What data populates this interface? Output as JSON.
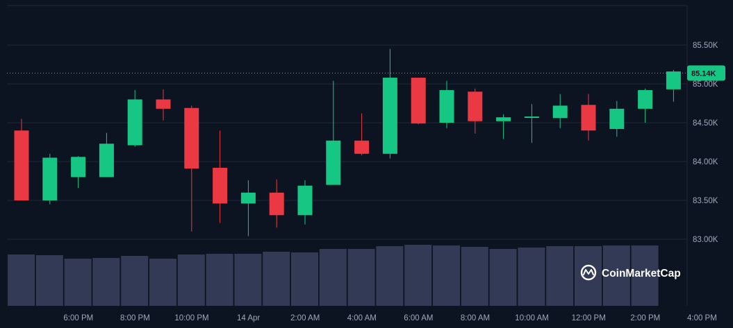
{
  "chart_data": {
    "type": "candlestick",
    "current_price_label": "85.14K",
    "current_price": 85140,
    "y_ticks": [
      {
        "value": 85500,
        "label": "85.50K"
      },
      {
        "value": 85000,
        "label": "85.00K"
      },
      {
        "value": 84500,
        "label": "84.50K"
      },
      {
        "value": 84000,
        "label": "84.00K"
      },
      {
        "value": 83500,
        "label": "83.50K"
      },
      {
        "value": 83000,
        "label": "83.00K"
      }
    ],
    "ylim": [
      82900,
      85800
    ],
    "x_ticks": [
      {
        "index": 1,
        "label": "6:00 PM"
      },
      {
        "index": 3,
        "label": "8:00 PM"
      },
      {
        "index": 5,
        "label": "10:00 PM"
      },
      {
        "index": 7,
        "label": "14 Apr"
      },
      {
        "index": 9,
        "label": "2:00 AM"
      },
      {
        "index": 11,
        "label": "4:00 AM"
      },
      {
        "index": 13,
        "label": "6:00 AM"
      },
      {
        "index": 15,
        "label": "8:00 AM"
      },
      {
        "index": 17,
        "label": "10:00 AM"
      },
      {
        "index": 19,
        "label": "12:00 PM"
      },
      {
        "index": 21,
        "label": "2:00 PM"
      },
      {
        "index": 23,
        "label": "4:00 PM"
      }
    ],
    "candles": [
      {
        "open": 84400,
        "high": 84550,
        "low": 83500,
        "close": 83500,
        "volume": 0.74
      },
      {
        "open": 83500,
        "high": 84100,
        "low": 83450,
        "close": 84050,
        "volume": 0.73
      },
      {
        "open": 83800,
        "high": 84070,
        "low": 83660,
        "close": 84060,
        "volume": 0.68
      },
      {
        "open": 83800,
        "high": 84370,
        "low": 83800,
        "close": 84230,
        "volume": 0.69
      },
      {
        "open": 84210,
        "high": 84920,
        "low": 84190,
        "close": 84800,
        "volume": 0.72
      },
      {
        "open": 84800,
        "high": 84930,
        "low": 84530,
        "close": 84680,
        "volume": 0.68
      },
      {
        "open": 84690,
        "high": 84720,
        "low": 83100,
        "close": 83910,
        "volume": 0.74
      },
      {
        "open": 83920,
        "high": 84400,
        "low": 83210,
        "close": 83460,
        "volume": 0.75
      },
      {
        "open": 83460,
        "high": 83760,
        "low": 83040,
        "close": 83600,
        "volume": 0.75
      },
      {
        "open": 83600,
        "high": 83770,
        "low": 83150,
        "close": 83310,
        "volume": 0.78
      },
      {
        "open": 83310,
        "high": 83760,
        "low": 83190,
        "close": 83690,
        "volume": 0.77
      },
      {
        "open": 83700,
        "high": 85040,
        "low": 83700,
        "close": 84270,
        "volume": 0.82
      },
      {
        "open": 84270,
        "high": 84620,
        "low": 84080,
        "close": 84100,
        "volume": 0.82
      },
      {
        "open": 84100,
        "high": 85450,
        "low": 84040,
        "close": 85080,
        "volume": 0.86
      },
      {
        "open": 85080,
        "high": 85080,
        "low": 84480,
        "close": 84490,
        "volume": 0.88
      },
      {
        "open": 84500,
        "high": 85040,
        "low": 84430,
        "close": 84920,
        "volume": 0.87
      },
      {
        "open": 84900,
        "high": 84940,
        "low": 84360,
        "close": 84520,
        "volume": 0.85
      },
      {
        "open": 84520,
        "high": 84610,
        "low": 84290,
        "close": 84570,
        "volume": 0.82
      },
      {
        "open": 84570,
        "high": 84740,
        "low": 84240,
        "close": 84580,
        "volume": 0.84
      },
      {
        "open": 84560,
        "high": 84870,
        "low": 84430,
        "close": 84720,
        "volume": 0.86
      },
      {
        "open": 84730,
        "high": 84870,
        "low": 84270,
        "close": 84400,
        "volume": 0.86
      },
      {
        "open": 84420,
        "high": 84780,
        "low": 84320,
        "close": 84680,
        "volume": 0.87
      },
      {
        "open": 84680,
        "high": 84940,
        "low": 84500,
        "close": 84920,
        "volume": 0.87
      },
      {
        "open": 84930,
        "high": 85180,
        "low": 84770,
        "close": 85160,
        "volume": null
      }
    ],
    "colors": {
      "up": "#16c784",
      "down": "#ea3943",
      "volume": "#323a55",
      "grid": "#1f2636",
      "background": "#0d1421",
      "price_line": "#8a8f9e"
    }
  },
  "watermark": {
    "text": "CoinMarketCap",
    "icon": "coinmarketcap-logo-icon"
  }
}
